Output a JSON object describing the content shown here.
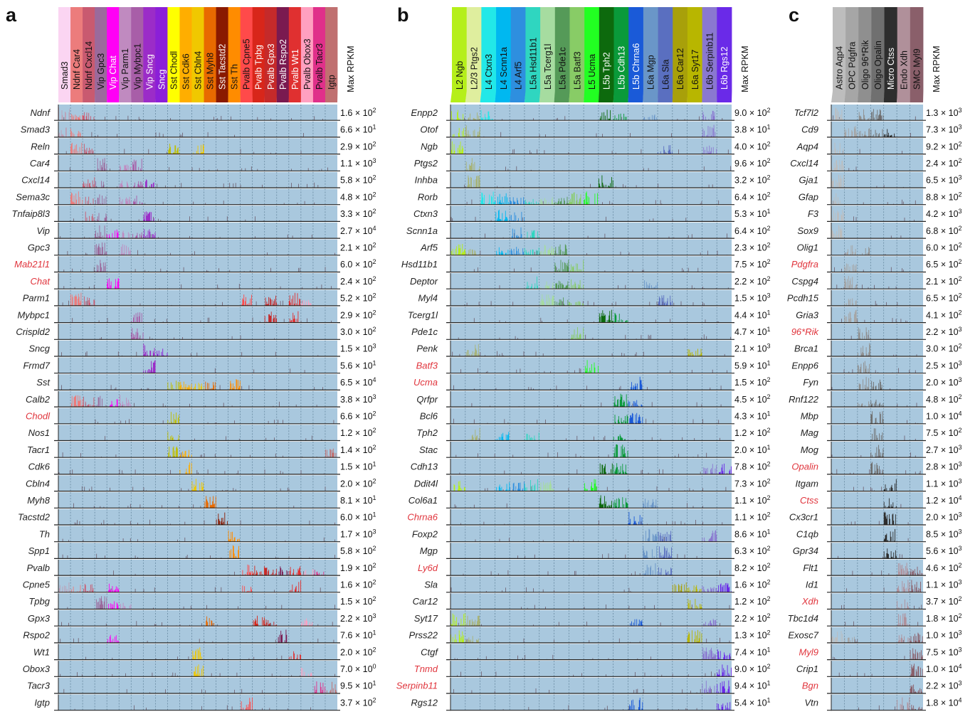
{
  "panels": [
    {
      "letter": "a",
      "max_rpkm_label": "Max RPKM",
      "types": [
        {
          "name": "Smad3",
          "color": "#fbd5f2"
        },
        {
          "name": "Ndnf Car4",
          "color": "#ec7c7c"
        },
        {
          "name": "Ndnf Cxcl14",
          "color": "#c95a70"
        },
        {
          "name": "Vip Gpc3",
          "color": "#9b6a9c"
        },
        {
          "name": "Vip Chat",
          "color": "#ff00f5"
        },
        {
          "name": "Vip Parm1",
          "color": "#c08ac0"
        },
        {
          "name": "Vip Mybpc1",
          "color": "#a85ea8"
        },
        {
          "name": "Vip Sncg",
          "color": "#9b2cc8"
        },
        {
          "name": "Sncg",
          "color": "#8b1fd8"
        },
        {
          "name": "Sst Chodl",
          "color": "#ffff00"
        },
        {
          "name": "Sst Cdk6",
          "color": "#ffae00"
        },
        {
          "name": "Sst Cbln4",
          "color": "#f0c800"
        },
        {
          "name": "Sst Myh8",
          "color": "#e86a00"
        },
        {
          "name": "Sst Tacstd2",
          "color": "#8a1a00"
        },
        {
          "name": "Sst Th",
          "color": "#ff8c00"
        },
        {
          "name": "Pvalb Cpne5",
          "color": "#ff4a4a"
        },
        {
          "name": "Pvalb Tpbg",
          "color": "#d8261a"
        },
        {
          "name": "Pvalb Gpx3",
          "color": "#c52a2a"
        },
        {
          "name": "Pvalb Rspo2",
          "color": "#7a1a50"
        },
        {
          "name": "Pvalb Wt1",
          "color": "#e03030"
        },
        {
          "name": "Pvalb Obox3",
          "color": "#ffa0c0"
        },
        {
          "name": "Pvalb Tacr3",
          "color": "#e0308a"
        },
        {
          "name": "Igtp",
          "color": "#c07070"
        }
      ],
      "genes": [
        {
          "name": "Ndnf",
          "max": "1.6",
          "exp": "2",
          "red": false
        },
        {
          "name": "Smad3",
          "max": "6.6",
          "exp": "1",
          "red": false
        },
        {
          "name": "Reln",
          "max": "2.9",
          "exp": "2",
          "red": false
        },
        {
          "name": "Car4",
          "max": "1.1",
          "exp": "3",
          "red": false
        },
        {
          "name": "Cxcl14",
          "max": "5.8",
          "exp": "2",
          "red": false
        },
        {
          "name": "Sema3c",
          "max": "4.8",
          "exp": "2",
          "red": false
        },
        {
          "name": "Tnfaip8l3",
          "max": "3.3",
          "exp": "2",
          "red": false
        },
        {
          "name": "Vip",
          "max": "2.7",
          "exp": "4",
          "red": false
        },
        {
          "name": "Gpc3",
          "max": "2.1",
          "exp": "2",
          "red": false
        },
        {
          "name": "Mab21l1",
          "max": "6.0",
          "exp": "2",
          "red": true
        },
        {
          "name": "Chat",
          "max": "2.4",
          "exp": "2",
          "red": true
        },
        {
          "name": "Parm1",
          "max": "5.2",
          "exp": "2",
          "red": false
        },
        {
          "name": "Mybpc1",
          "max": "2.9",
          "exp": "2",
          "red": false
        },
        {
          "name": "Crispld2",
          "max": "3.0",
          "exp": "2",
          "red": false
        },
        {
          "name": "Sncg",
          "max": "1.5",
          "exp": "3",
          "red": false
        },
        {
          "name": "Frmd7",
          "max": "5.6",
          "exp": "1",
          "red": false
        },
        {
          "name": "Sst",
          "max": "6.5",
          "exp": "4",
          "red": false
        },
        {
          "name": "Calb2",
          "max": "3.8",
          "exp": "3",
          "red": false
        },
        {
          "name": "Chodl",
          "max": "6.6",
          "exp": "2",
          "red": true
        },
        {
          "name": "Nos1",
          "max": "1.2",
          "exp": "2",
          "red": false
        },
        {
          "name": "Tacr1",
          "max": "1.4",
          "exp": "2",
          "red": false
        },
        {
          "name": "Cdk6",
          "max": "1.5",
          "exp": "1",
          "red": false
        },
        {
          "name": "Cbln4",
          "max": "2.0",
          "exp": "2",
          "red": false
        },
        {
          "name": "Myh8",
          "max": "8.1",
          "exp": "1",
          "red": false
        },
        {
          "name": "Tacstd2",
          "max": "6.0",
          "exp": "1",
          "red": false
        },
        {
          "name": "Th",
          "max": "1.7",
          "exp": "3",
          "red": false
        },
        {
          "name": "Spp1",
          "max": "5.8",
          "exp": "2",
          "red": false
        },
        {
          "name": "Pvalb",
          "max": "1.9",
          "exp": "2",
          "red": false
        },
        {
          "name": "Cpne5",
          "max": "1.6",
          "exp": "2",
          "red": false
        },
        {
          "name": "Tpbg",
          "max": "1.5",
          "exp": "2",
          "red": false
        },
        {
          "name": "Gpx3",
          "max": "2.2",
          "exp": "3",
          "red": false
        },
        {
          "name": "Rspo2",
          "max": "7.6",
          "exp": "1",
          "red": false
        },
        {
          "name": "Wt1",
          "max": "2.0",
          "exp": "2",
          "red": false
        },
        {
          "name": "Obox3",
          "max": "7.0",
          "exp": "0",
          "red": false
        },
        {
          "name": "Tacr3",
          "max": "9.5",
          "exp": "1",
          "red": false
        },
        {
          "name": "Igtp",
          "max": "3.7",
          "exp": "2",
          "red": false
        }
      ]
    },
    {
      "letter": "b",
      "max_rpkm_label": "Max RPKM",
      "types": [
        {
          "name": "L2 Ngb",
          "color": "#b5ef1a"
        },
        {
          "name": "L2/3 Ptgs2",
          "color": "#dfee9e"
        },
        {
          "name": "L4 Ctxn3",
          "color": "#22e8e8"
        },
        {
          "name": "L4 Scnn1a",
          "color": "#00b8f0"
        },
        {
          "name": "L4 Arf5",
          "color": "#2e8fdf"
        },
        {
          "name": "L5a Hsd11b1",
          "color": "#2fd6c0"
        },
        {
          "name": "L5a Tcerg1l",
          "color": "#a6dca0"
        },
        {
          "name": "L5a Pde1c",
          "color": "#559a58"
        },
        {
          "name": "L5a Batf3",
          "color": "#88cc66"
        },
        {
          "name": "L5 Ucma",
          "color": "#22ff22"
        },
        {
          "name": "L5b Tph2",
          "color": "#0d6a0d"
        },
        {
          "name": "L5b Cdh13",
          "color": "#0a9a3a"
        },
        {
          "name": "L5b Chrna6",
          "color": "#1a5ad8"
        },
        {
          "name": "L6a Mgp",
          "color": "#6a96c8"
        },
        {
          "name": "L6a Sla",
          "color": "#5a6fc0"
        },
        {
          "name": "L6a Car12",
          "color": "#a8a00a"
        },
        {
          "name": "L6a Syt17",
          "color": "#b8b600"
        },
        {
          "name": "L6b Serpinb11",
          "color": "#8a78d0"
        },
        {
          "name": "L6b Rgs12",
          "color": "#6a2ae8"
        }
      ],
      "genes": [
        {
          "name": "Enpp2",
          "max": "9.0",
          "exp": "2",
          "red": false
        },
        {
          "name": "Otof",
          "max": "3.8",
          "exp": "1",
          "red": false
        },
        {
          "name": "Ngb",
          "max": "4.0",
          "exp": "2",
          "red": false
        },
        {
          "name": "Ptgs2",
          "max": "9.6",
          "exp": "2",
          "red": false
        },
        {
          "name": "Inhba",
          "max": "3.2",
          "exp": "2",
          "red": false
        },
        {
          "name": "Rorb",
          "max": "6.4",
          "exp": "2",
          "red": false
        },
        {
          "name": "Ctxn3",
          "max": "5.3",
          "exp": "1",
          "red": false
        },
        {
          "name": "Scnn1a",
          "max": "6.4",
          "exp": "2",
          "red": false
        },
        {
          "name": "Arf5",
          "max": "2.3",
          "exp": "2",
          "red": false
        },
        {
          "name": "Hsd11b1",
          "max": "7.5",
          "exp": "2",
          "red": false
        },
        {
          "name": "Deptor",
          "max": "2.2",
          "exp": "2",
          "red": false
        },
        {
          "name": "Myl4",
          "max": "1.5",
          "exp": "3",
          "red": false
        },
        {
          "name": "Tcerg1l",
          "max": "4.4",
          "exp": "1",
          "red": false
        },
        {
          "name": "Pde1c",
          "max": "4.7",
          "exp": "1",
          "red": false
        },
        {
          "name": "Penk",
          "max": "2.1",
          "exp": "3",
          "red": false
        },
        {
          "name": "Batf3",
          "max": "5.9",
          "exp": "1",
          "red": true
        },
        {
          "name": "Ucma",
          "max": "1.5",
          "exp": "2",
          "red": true
        },
        {
          "name": "Qrfpr",
          "max": "4.5",
          "exp": "2",
          "red": false
        },
        {
          "name": "Bcl6",
          "max": "4.3",
          "exp": "1",
          "red": false
        },
        {
          "name": "Tph2",
          "max": "1.2",
          "exp": "2",
          "red": false
        },
        {
          "name": "Stac",
          "max": "2.0",
          "exp": "1",
          "red": false
        },
        {
          "name": "Cdh13",
          "max": "7.8",
          "exp": "2",
          "red": false
        },
        {
          "name": "Ddit4l",
          "max": "7.3",
          "exp": "2",
          "red": false
        },
        {
          "name": "Col6a1",
          "max": "1.1",
          "exp": "2",
          "red": false
        },
        {
          "name": "Chrna6",
          "max": "1.1",
          "exp": "2",
          "red": true
        },
        {
          "name": "Foxp2",
          "max": "8.6",
          "exp": "1",
          "red": false
        },
        {
          "name": "Mgp",
          "max": "6.3",
          "exp": "2",
          "red": false
        },
        {
          "name": "Ly6d",
          "max": "8.2",
          "exp": "2",
          "red": true
        },
        {
          "name": "Sla",
          "max": "1.6",
          "exp": "2",
          "red": false
        },
        {
          "name": "Car12",
          "max": "1.2",
          "exp": "2",
          "red": false
        },
        {
          "name": "Syt17",
          "max": "2.2",
          "exp": "2",
          "red": false
        },
        {
          "name": "Prss22",
          "max": "1.3",
          "exp": "2",
          "red": false
        },
        {
          "name": "Ctgf",
          "max": "7.4",
          "exp": "1",
          "red": false
        },
        {
          "name": "Tnmd",
          "max": "9.0",
          "exp": "2",
          "red": true
        },
        {
          "name": "Serpinb11",
          "max": "9.4",
          "exp": "1",
          "red": true
        },
        {
          "name": "Rgs12",
          "max": "5.4",
          "exp": "1",
          "red": false
        }
      ]
    },
    {
      "letter": "c",
      "max_rpkm_label": "Max RPKM",
      "types": [
        {
          "name": "Astro Aqp4",
          "color": "#bdbdbd"
        },
        {
          "name": "OPC Pdgfra",
          "color": "#a6a6a6"
        },
        {
          "name": "Oligo 96*Rik",
          "color": "#8f8f8f"
        },
        {
          "name": "Oligo Opalin",
          "color": "#707070"
        },
        {
          "name": "Micro Ctss",
          "color": "#2e2e2e"
        },
        {
          "name": "Endo Xdh",
          "color": "#b0909a"
        },
        {
          "name": "SMC Myl9",
          "color": "#8a5f6a"
        }
      ],
      "genes": [
        {
          "name": "Tcf7l2",
          "max": "1.3",
          "exp": "3",
          "red": false
        },
        {
          "name": "Cd9",
          "max": "7.3",
          "exp": "3",
          "red": false
        },
        {
          "name": "Aqp4",
          "max": "9.2",
          "exp": "2",
          "red": false
        },
        {
          "name": "Cxcl14",
          "max": "2.4",
          "exp": "2",
          "red": false
        },
        {
          "name": "Gja1",
          "max": "6.5",
          "exp": "3",
          "red": false
        },
        {
          "name": "Gfap",
          "max": "8.8",
          "exp": "2",
          "red": false
        },
        {
          "name": "F3",
          "max": "4.2",
          "exp": "3",
          "red": false
        },
        {
          "name": "Sox9",
          "max": "6.8",
          "exp": "2",
          "red": false
        },
        {
          "name": "Olig1",
          "max": "6.0",
          "exp": "2",
          "red": false
        },
        {
          "name": "Pdgfra",
          "max": "6.5",
          "exp": "2",
          "red": true
        },
        {
          "name": "Cspg4",
          "max": "2.1",
          "exp": "2",
          "red": false
        },
        {
          "name": "Pcdh15",
          "max": "6.5",
          "exp": "2",
          "red": false
        },
        {
          "name": "Gria3",
          "max": "4.1",
          "exp": "2",
          "red": false
        },
        {
          "name": "96*Rik",
          "max": "2.2",
          "exp": "3",
          "red": true
        },
        {
          "name": "Brca1",
          "max": "3.0",
          "exp": "2",
          "red": false
        },
        {
          "name": "Enpp6",
          "max": "2.5",
          "exp": "3",
          "red": false
        },
        {
          "name": "Fyn",
          "max": "2.0",
          "exp": "3",
          "red": false
        },
        {
          "name": "Rnf122",
          "max": "4.8",
          "exp": "2",
          "red": false
        },
        {
          "name": "Mbp",
          "max": "1.0",
          "exp": "4",
          "red": false
        },
        {
          "name": "Mag",
          "max": "7.5",
          "exp": "2",
          "red": false
        },
        {
          "name": "Mog",
          "max": "2.7",
          "exp": "3",
          "red": false
        },
        {
          "name": "Opalin",
          "max": "2.8",
          "exp": "3",
          "red": true
        },
        {
          "name": "Itgam",
          "max": "1.1",
          "exp": "3",
          "red": false
        },
        {
          "name": "Ctss",
          "max": "1.2",
          "exp": "4",
          "red": true
        },
        {
          "name": "Cx3cr1",
          "max": "2.0",
          "exp": "3",
          "red": false
        },
        {
          "name": "C1qb",
          "max": "8.5",
          "exp": "3",
          "red": false
        },
        {
          "name": "Gpr34",
          "max": "5.6",
          "exp": "3",
          "red": false
        },
        {
          "name": "Flt1",
          "max": "4.6",
          "exp": "2",
          "red": false
        },
        {
          "name": "Id1",
          "max": "1.1",
          "exp": "3",
          "red": false
        },
        {
          "name": "Xdh",
          "max": "3.7",
          "exp": "2",
          "red": true
        },
        {
          "name": "Tbc1d4",
          "max": "1.8",
          "exp": "2",
          "red": false
        },
        {
          "name": "Exosc7",
          "max": "1.0",
          "exp": "3",
          "red": false
        },
        {
          "name": "Myl9",
          "max": "7.5",
          "exp": "3",
          "red": true
        },
        {
          "name": "Crip1",
          "max": "1.0",
          "exp": "4",
          "red": false
        },
        {
          "name": "Bgn",
          "max": "2.2",
          "exp": "3",
          "red": true
        },
        {
          "name": "Vtn",
          "max": "1.8",
          "exp": "4",
          "red": false
        }
      ]
    }
  ],
  "chart_data": [
    {
      "type": "bar",
      "panel": "a",
      "title": "",
      "ylabel": "Max RPKM",
      "note": "per-cell expression bar tracks; one track per gene, grouped by cell type"
    },
    {
      "type": "bar",
      "panel": "b",
      "title": "",
      "ylabel": "Max RPKM",
      "note": "per-cell expression bar tracks; one track per gene, grouped by cell type"
    },
    {
      "type": "bar",
      "panel": "c",
      "title": "",
      "ylabel": "Max RPKM",
      "note": "per-cell expression bar tracks; one track per gene, grouped by cell type"
    }
  ],
  "colors": {
    "track_background": "#a9c8de",
    "gene_label_highlight": "#e0343c",
    "gene_label": "#222222"
  }
}
